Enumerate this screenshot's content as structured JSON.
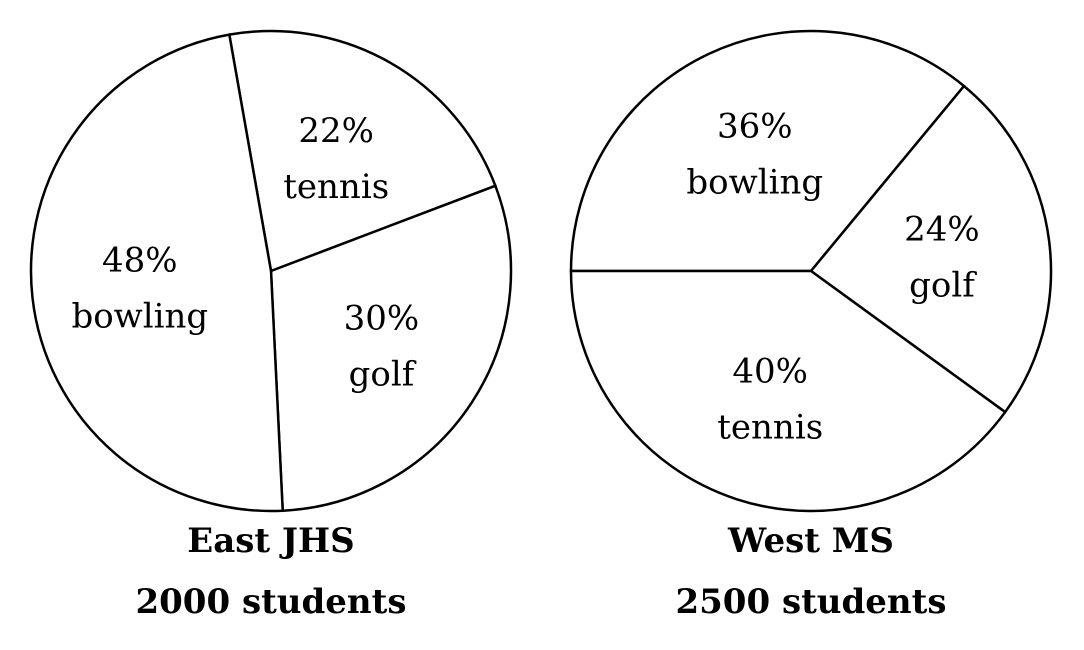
{
  "chart_data": [
    {
      "type": "pie",
      "title": "East JHS",
      "subtitle": "2000 students",
      "slices": [
        {
          "label": "tennis",
          "percent_text": "22%",
          "value": 22
        },
        {
          "label": "golf",
          "percent_text": "30%",
          "value": 30
        },
        {
          "label": "bowling",
          "percent_text": "48%",
          "value": 48
        }
      ]
    },
    {
      "type": "pie",
      "title": "West MS",
      "subtitle": "2500 students",
      "slices": [
        {
          "label": "bowling",
          "percent_text": "36%",
          "value": 36
        },
        {
          "label": "golf",
          "percent_text": "24%",
          "value": 24
        },
        {
          "label": "tennis",
          "percent_text": "40%",
          "value": 40
        }
      ]
    }
  ],
  "colors": {
    "fill": "#ffffff",
    "stroke": "#000000"
  }
}
